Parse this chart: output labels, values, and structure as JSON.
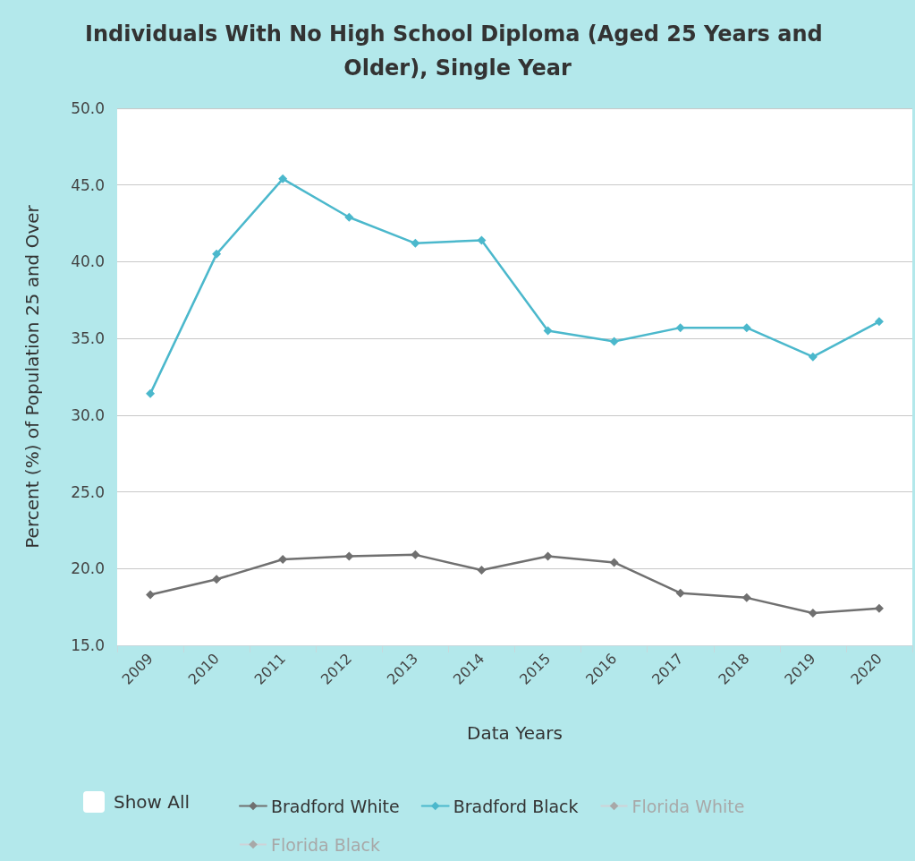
{
  "chart_data": {
    "type": "line",
    "title": "Individuals With No High School Diploma (Aged 25 Years and Older), Single Year",
    "xlabel": "Data Years",
    "ylabel": "Percent (%) of Population 25 and Over",
    "categories": [
      "2009",
      "2010",
      "2011",
      "2012",
      "2013",
      "2014",
      "2015",
      "2016",
      "2017",
      "2018",
      "2019",
      "2020"
    ],
    "series": [
      {
        "name": "Bradford White",
        "color": "#707070",
        "values": [
          18.3,
          19.3,
          20.6,
          20.8,
          20.9,
          19.9,
          20.8,
          20.4,
          18.4,
          18.1,
          17.1,
          17.4
        ]
      },
      {
        "name": "Bradford Black",
        "color": "#4bb8cc",
        "values": [
          31.4,
          40.5,
          45.4,
          42.9,
          41.2,
          41.4,
          35.5,
          34.8,
          35.7,
          35.7,
          33.8,
          36.1
        ]
      },
      {
        "name": "Florida White",
        "color": "#a8a8a8",
        "values": [
          null,
          null,
          null,
          null,
          null,
          null,
          null,
          null,
          null,
          null,
          null,
          null
        ]
      },
      {
        "name": "Florida Black",
        "color": "#a8a8a8",
        "values": [
          null,
          null,
          null,
          null,
          null,
          null,
          null,
          null,
          null,
          null,
          null,
          null
        ]
      }
    ],
    "ylim": [
      15,
      50
    ],
    "yticks": [
      {
        "value": 15,
        "label": "15.0"
      },
      {
        "value": 20,
        "label": "20.0"
      },
      {
        "value": 25,
        "label": "25.0"
      },
      {
        "value": 30,
        "label": "30.0"
      },
      {
        "value": 35,
        "label": "35.0"
      },
      {
        "value": 40,
        "label": "40.0"
      },
      {
        "value": 45,
        "label": "45.0"
      },
      {
        "value": 50,
        "label": "50.0"
      }
    ],
    "grid": "y",
    "legend": "bottom",
    "marker": "diamond",
    "line_style": "solid",
    "annotations": [
      "Show All"
    ]
  }
}
